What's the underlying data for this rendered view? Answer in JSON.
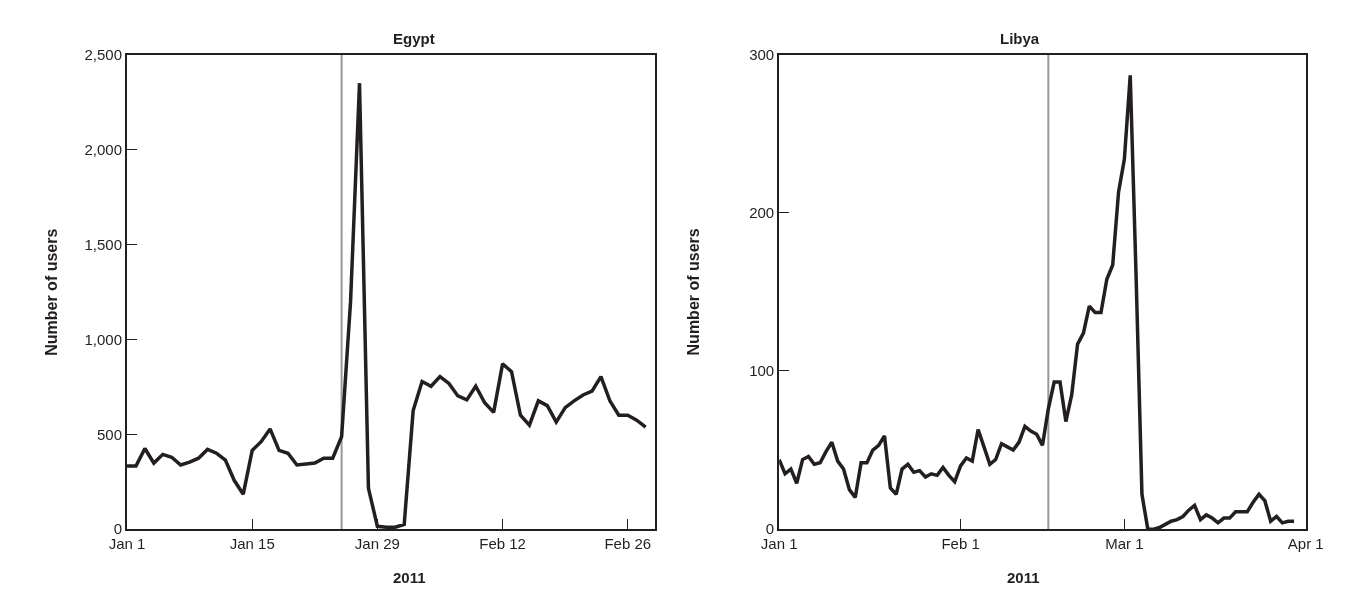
{
  "chart_data": [
    {
      "type": "line",
      "title": "Egypt",
      "xlabel": "2011",
      "ylabel": "Number of users",
      "x": [
        "2011-01-01",
        "2011-01-02",
        "2011-01-03",
        "2011-01-04",
        "2011-01-05",
        "2011-01-06",
        "2011-01-07",
        "2011-01-08",
        "2011-01-09",
        "2011-01-10",
        "2011-01-11",
        "2011-01-12",
        "2011-01-13",
        "2011-01-14",
        "2011-01-15",
        "2011-01-16",
        "2011-01-17",
        "2011-01-18",
        "2011-01-19",
        "2011-01-20",
        "2011-01-21",
        "2011-01-22",
        "2011-01-23",
        "2011-01-24",
        "2011-01-25",
        "2011-01-26",
        "2011-01-27",
        "2011-01-28",
        "2011-01-29",
        "2011-01-30",
        "2011-01-31",
        "2011-02-01",
        "2011-02-02",
        "2011-02-03",
        "2011-02-04",
        "2011-02-05",
        "2011-02-06",
        "2011-02-07",
        "2011-02-08",
        "2011-02-09",
        "2011-02-10",
        "2011-02-11",
        "2011-02-12",
        "2011-02-13",
        "2011-02-14",
        "2011-02-15",
        "2011-02-16",
        "2011-02-17",
        "2011-02-18",
        "2011-02-19",
        "2011-02-20",
        "2011-02-21",
        "2011-02-22",
        "2011-02-23",
        "2011-02-24",
        "2011-02-25",
        "2011-02-26",
        "2011-02-27",
        "2011-02-28"
      ],
      "series": [
        {
          "color": "#231f20",
          "values": [
            333,
            333,
            425,
            348,
            394,
            379,
            338,
            353,
            374,
            420,
            400,
            364,
            256,
            184,
            415,
            461,
            528,
            415,
            400,
            338,
            343,
            348,
            374,
            374,
            487,
            1200,
            2350,
            215,
            15,
            10,
            10,
            25,
            625,
            778,
            753,
            804,
            768,
            702,
            681,
            753,
            666,
            615,
            871,
            830,
            600,
            548,
            676,
            651,
            564,
            640,
            676,
            707,
            727,
            804,
            676,
            600,
            600,
            574,
            538
          ]
        }
      ],
      "xlim": [
        "2011-01-01",
        "2011-03-01"
      ],
      "xticks": [
        {
          "value": "2011-01-01",
          "label": "Jan 1"
        },
        {
          "value": "2011-01-15",
          "label": "Jan 15"
        },
        {
          "value": "2011-01-29",
          "label": "Jan 29"
        },
        {
          "value": "2011-02-12",
          "label": "Feb 12"
        },
        {
          "value": "2011-02-26",
          "label": "Feb 26"
        }
      ],
      "ylim": [
        0,
        2500
      ],
      "yticks": [
        0,
        {
          "value": 500,
          "label": "500"
        },
        {
          "value": 1000,
          "label": "1,000"
        },
        {
          "value": 1500,
          "label": "1,500"
        },
        {
          "value": 2000,
          "label": "2,000"
        },
        {
          "value": 2500,
          "label": "2,500"
        }
      ],
      "ref_lines": [
        {
          "axis": "x",
          "value": "2011-01-25",
          "color": "#999999"
        }
      ],
      "grid": false,
      "marker": "none",
      "line_style": "solid"
    },
    {
      "type": "line",
      "title": "Libya",
      "xlabel": "2011",
      "ylabel": "Number of users",
      "x": [
        "2011-01-01",
        "2011-01-02",
        "2011-01-03",
        "2011-01-04",
        "2011-01-05",
        "2011-01-06",
        "2011-01-07",
        "2011-01-08",
        "2011-01-09",
        "2011-01-10",
        "2011-01-11",
        "2011-01-12",
        "2011-01-13",
        "2011-01-14",
        "2011-01-15",
        "2011-01-16",
        "2011-01-17",
        "2011-01-18",
        "2011-01-19",
        "2011-01-20",
        "2011-01-21",
        "2011-01-22",
        "2011-01-23",
        "2011-01-24",
        "2011-01-25",
        "2011-01-26",
        "2011-01-27",
        "2011-01-28",
        "2011-01-29",
        "2011-01-30",
        "2011-01-31",
        "2011-02-01",
        "2011-02-02",
        "2011-02-03",
        "2011-02-04",
        "2011-02-05",
        "2011-02-06",
        "2011-02-07",
        "2011-02-08",
        "2011-02-09",
        "2011-02-10",
        "2011-02-11",
        "2011-02-12",
        "2011-02-13",
        "2011-02-14",
        "2011-02-15",
        "2011-02-16",
        "2011-02-17",
        "2011-02-18",
        "2011-02-19",
        "2011-02-20",
        "2011-02-21",
        "2011-02-22",
        "2011-02-23",
        "2011-02-24",
        "2011-02-25",
        "2011-02-26",
        "2011-02-27",
        "2011-02-28",
        "2011-03-01",
        "2011-03-02",
        "2011-03-03",
        "2011-03-04",
        "2011-03-05",
        "2011-03-06",
        "2011-03-07",
        "2011-03-08",
        "2011-03-09",
        "2011-03-10",
        "2011-03-11",
        "2011-03-12",
        "2011-03-13",
        "2011-03-14",
        "2011-03-15",
        "2011-03-16",
        "2011-03-17",
        "2011-03-18",
        "2011-03-19",
        "2011-03-20",
        "2011-03-21",
        "2011-03-22",
        "2011-03-23",
        "2011-03-24",
        "2011-03-25",
        "2011-03-26",
        "2011-03-27",
        "2011-03-28",
        "2011-03-29",
        "2011-03-30"
      ],
      "series": [
        {
          "color": "#231f20",
          "values": [
            44,
            35,
            38,
            29,
            44,
            46,
            41,
            42,
            49,
            55,
            43,
            38,
            25,
            20,
            42,
            42,
            50,
            53,
            59,
            26,
            22,
            38,
            41,
            36,
            37,
            33,
            35,
            34,
            39,
            34,
            30,
            40,
            45,
            43,
            63,
            52,
            41,
            44,
            54,
            52,
            50,
            55,
            65,
            62,
            60,
            53,
            76,
            93,
            93,
            68,
            85,
            117,
            124,
            141,
            137,
            137,
            158,
            167,
            213,
            234,
            287,
            160,
            22,
            0,
            0,
            1,
            3,
            5,
            6,
            8,
            12,
            15,
            6,
            9,
            7,
            4,
            7,
            7,
            11,
            11,
            11,
            17,
            22,
            18,
            5,
            8,
            4,
            5,
            5
          ]
        }
      ],
      "xlim": [
        "2011-01-01",
        "2011-04-01"
      ],
      "xticks": [
        {
          "value": "2011-01-01",
          "label": "Jan 1"
        },
        {
          "value": "2011-02-01",
          "label": "Feb 1"
        },
        {
          "value": "2011-03-01",
          "label": "Mar 1"
        },
        {
          "value": "2011-04-01",
          "label": "Apr 1"
        }
      ],
      "ylim": [
        0,
        300
      ],
      "yticks": [
        0,
        100,
        200,
        300
      ],
      "ref_lines": [
        {
          "axis": "x",
          "value": "2011-02-16",
          "color": "#999999"
        }
      ],
      "grid": false,
      "marker": "none",
      "line_style": "solid"
    }
  ]
}
